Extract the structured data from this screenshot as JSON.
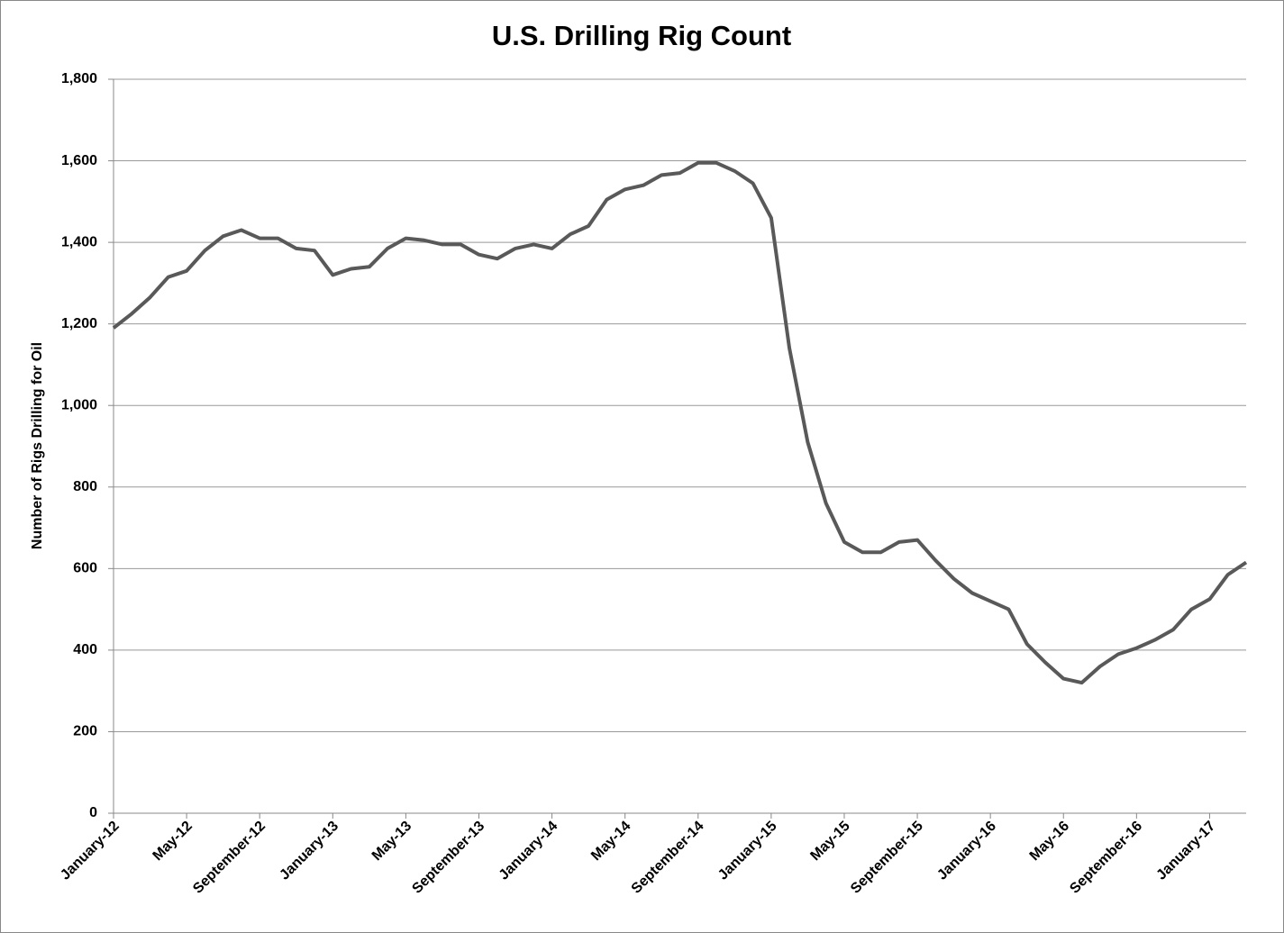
{
  "chart_data": {
    "type": "line",
    "title": "U.S. Drilling Rig Count",
    "y_label": "Number of Rigs Drilling for Oil",
    "categories": [
      "January-12",
      null,
      null,
      null,
      "May-12",
      null,
      null,
      null,
      "September-12",
      null,
      null,
      null,
      "January-13",
      null,
      null,
      null,
      "May-13",
      null,
      null,
      null,
      "September-13",
      null,
      null,
      null,
      "January-14",
      null,
      null,
      null,
      "May-14",
      null,
      null,
      null,
      "September-14",
      null,
      null,
      null,
      "January-15",
      null,
      null,
      null,
      "May-15",
      null,
      null,
      null,
      "September-15",
      null,
      null,
      null,
      "January-16",
      null,
      null,
      null,
      "May-16",
      null,
      null,
      null,
      "September-16",
      null,
      null,
      null,
      "January-17",
      null,
      null
    ],
    "series": [
      {
        "name": "Rigs Drilling for Oil",
        "color": "#595959",
        "values": [
          1190,
          1225,
          1265,
          1315,
          1330,
          1380,
          1415,
          1430,
          1410,
          1410,
          1385,
          1380,
          1320,
          1335,
          1340,
          1385,
          1410,
          1405,
          1395,
          1395,
          1370,
          1360,
          1385,
          1395,
          1385,
          1420,
          1440,
          1505,
          1530,
          1540,
          1565,
          1570,
          1595,
          1595,
          1575,
          1545,
          1460,
          1140,
          910,
          760,
          665,
          640,
          640,
          665,
          670,
          620,
          575,
          540,
          520,
          500,
          415,
          370,
          330,
          320,
          360,
          390,
          405,
          425,
          450,
          500,
          525,
          585,
          615
        ]
      }
    ],
    "ylim": [
      0,
      1800
    ],
    "yticks": [
      0,
      200,
      400,
      600,
      800,
      {
        "value": 1000,
        "label": "1,000"
      },
      {
        "value": 1200,
        "label": "1,200"
      },
      {
        "value": 1400,
        "label": "1,400"
      },
      {
        "value": 1600,
        "label": "1,600"
      },
      {
        "value": 1800,
        "label": "1,800"
      }
    ],
    "grid": true
  }
}
